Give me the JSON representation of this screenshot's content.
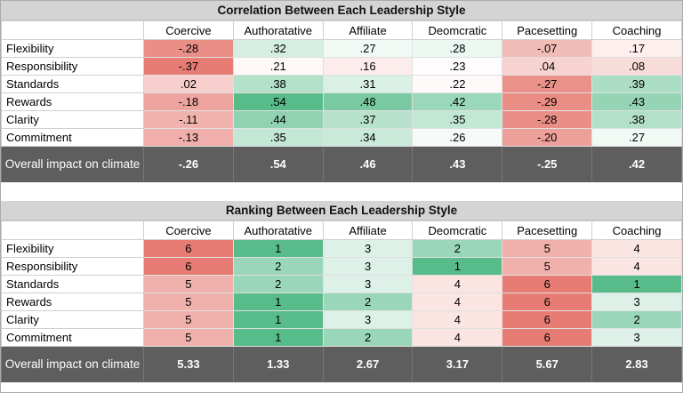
{
  "colors": {
    "title_bg": "#d4d4d4",
    "header_bg": "#ffffff",
    "overall_row_bg": "#5e5e5e",
    "overall_row_text": "#ffffff",
    "grid_border": "#d9d9d9",
    "scale_low": "#e67c73",
    "scale_mid": "#ffffff",
    "scale_high": "#57bb8a"
  },
  "tables": [
    {
      "name": "correlation",
      "title": "Correlation Between Each Leadership Style",
      "columns": [
        "Coercive",
        "Authoratative",
        "Affiliate",
        "Deomcratic",
        "Pacesetting",
        "Coaching"
      ],
      "rows": [
        {
          "label": "Flexibility",
          "values": [
            "-.28",
            ".32",
            ".27",
            ".28",
            "-.07",
            ".17"
          ],
          "bg": [
            "#ea8f87",
            "#d4eee1",
            "#f1f9f5",
            "#ebf7f1",
            "#f2bcb7",
            "#fcefee"
          ]
        },
        {
          "label": "Responsibility",
          "values": [
            "-.37",
            ".21",
            ".16",
            ".23",
            ".04",
            ".08"
          ],
          "bg": [
            "#e67c73",
            "#fef8f7",
            "#fcedec",
            "#fefcfc",
            "#f7d3d0",
            "#f8dcd9"
          ]
        },
        {
          "label": "Standards",
          "values": [
            ".02",
            ".38",
            ".31",
            ".22",
            "-.27",
            ".39"
          ],
          "bg": [
            "#f6cfcc",
            "#b2e0c9",
            "#daf0e5",
            "#fefaf9",
            "#ea918a",
            "#acdec5"
          ]
        },
        {
          "label": "Rewards",
          "values": [
            "-.18",
            ".54",
            ".48",
            ".42",
            "-.29",
            ".43"
          ],
          "bg": [
            "#eea49e",
            "#57bb8a",
            "#79c9a2",
            "#9bd7ba",
            "#e98d85",
            "#96d4b6"
          ]
        },
        {
          "label": "Clarity",
          "values": [
            "-.11",
            ".44",
            ".37",
            ".35",
            "-.28",
            ".38"
          ],
          "bg": [
            "#f1b3ae",
            "#90d2b2",
            "#b8e2cd",
            "#c3e7d5",
            "#ea8f87",
            "#b2e0c9"
          ]
        },
        {
          "label": "Commitment",
          "values": [
            "-.13",
            ".35",
            ".34",
            ".26",
            "-.20",
            ".27"
          ],
          "bg": [
            "#f0afaa",
            "#c3e7d5",
            "#c9e9d9",
            "#f6fbf9",
            "#eda09a",
            "#f1f9f5"
          ]
        }
      ],
      "overall": {
        "label": "Overall impact on climate",
        "values": [
          "-.26",
          ".54",
          ".46",
          ".43",
          "-.25",
          ".42"
        ]
      }
    },
    {
      "name": "ranking",
      "title": "Ranking Between Each Leadership Style",
      "columns": [
        "Coercive",
        "Authoratative",
        "Affiliate",
        "Deomcratic",
        "Pacesetting",
        "Coaching"
      ],
      "rows": [
        {
          "label": "Flexibility",
          "values": [
            "6",
            "1",
            "3",
            "2",
            "5",
            "4"
          ],
          "bg": [
            "#e67c73",
            "#57bb8a",
            "#ddf1e8",
            "#9ad6b9",
            "#f0b0ab",
            "#fae5e3"
          ]
        },
        {
          "label": "Responsibility",
          "values": [
            "6",
            "2",
            "3",
            "1",
            "5",
            "4"
          ],
          "bg": [
            "#e67c73",
            "#9ad6b9",
            "#ddf1e8",
            "#57bb8a",
            "#f0b0ab",
            "#fae5e3"
          ]
        },
        {
          "label": "Standards",
          "values": [
            "5",
            "2",
            "3",
            "4",
            "6",
            "1"
          ],
          "bg": [
            "#f0b0ab",
            "#9ad6b9",
            "#ddf1e8",
            "#fae5e3",
            "#e67c73",
            "#57bb8a"
          ]
        },
        {
          "label": "Rewards",
          "values": [
            "5",
            "1",
            "2",
            "4",
            "6",
            "3"
          ],
          "bg": [
            "#f0b0ab",
            "#57bb8a",
            "#9ad6b9",
            "#fae5e3",
            "#e67c73",
            "#ddf1e8"
          ]
        },
        {
          "label": "Clarity",
          "values": [
            "5",
            "1",
            "3",
            "4",
            "6",
            "2"
          ],
          "bg": [
            "#f0b0ab",
            "#57bb8a",
            "#ddf1e8",
            "#fae5e3",
            "#e67c73",
            "#9ad6b9"
          ]
        },
        {
          "label": "Commitment",
          "values": [
            "5",
            "1",
            "2",
            "4",
            "6",
            "3"
          ],
          "bg": [
            "#f0b0ab",
            "#57bb8a",
            "#9ad6b9",
            "#fae5e3",
            "#e67c73",
            "#ddf1e8"
          ]
        }
      ],
      "overall": {
        "label": "Overall impact on climate",
        "values": [
          "5.33",
          "1.33",
          "2.67",
          "3.17",
          "5.67",
          "2.83"
        ]
      }
    }
  ],
  "chart_data": [
    {
      "type": "heatmap",
      "title": "Correlation Between Each Leadership Style",
      "columns": [
        "Coercive",
        "Authoratative",
        "Affiliate",
        "Deomcratic",
        "Pacesetting",
        "Coaching"
      ],
      "rows": [
        "Flexibility",
        "Responsibility",
        "Standards",
        "Rewards",
        "Clarity",
        "Commitment"
      ],
      "values": [
        [
          -0.28,
          0.32,
          0.27,
          0.28,
          -0.07,
          0.17
        ],
        [
          -0.37,
          0.21,
          0.16,
          0.23,
          0.04,
          0.08
        ],
        [
          0.02,
          0.38,
          0.31,
          0.22,
          -0.27,
          0.39
        ],
        [
          -0.18,
          0.54,
          0.48,
          0.42,
          -0.29,
          0.43
        ],
        [
          -0.11,
          0.44,
          0.37,
          0.35,
          -0.28,
          0.38
        ],
        [
          -0.13,
          0.35,
          0.34,
          0.26,
          -0.2,
          0.27
        ]
      ],
      "summary_row": {
        "label": "Overall impact on climate",
        "values": [
          -0.26,
          0.54,
          0.46,
          0.43,
          -0.25,
          0.42
        ]
      },
      "color_scale": {
        "low": "#e67c73",
        "mid": "#ffffff",
        "high": "#57bb8a",
        "low_value": -0.37,
        "mid_value": 0.245,
        "high_value": 0.54
      }
    },
    {
      "type": "heatmap",
      "title": "Ranking Between Each Leadership Style",
      "columns": [
        "Coercive",
        "Authoratative",
        "Affiliate",
        "Deomcratic",
        "Pacesetting",
        "Coaching"
      ],
      "rows": [
        "Flexibility",
        "Responsibility",
        "Standards",
        "Rewards",
        "Clarity",
        "Commitment"
      ],
      "values": [
        [
          6,
          1,
          3,
          2,
          5,
          4
        ],
        [
          6,
          2,
          3,
          1,
          5,
          4
        ],
        [
          5,
          2,
          3,
          4,
          6,
          1
        ],
        [
          5,
          1,
          2,
          4,
          6,
          3
        ],
        [
          5,
          1,
          3,
          4,
          6,
          2
        ],
        [
          5,
          1,
          2,
          4,
          6,
          3
        ]
      ],
      "summary_row": {
        "label": "Overall impact on climate",
        "values": [
          5.33,
          1.33,
          2.67,
          3.17,
          5.67,
          2.83
        ]
      },
      "color_scale": {
        "low": "#e67c73",
        "mid": "#ffffff",
        "high": "#57bb8a",
        "low_value": 6,
        "mid_value": 3.5,
        "high_value": 1
      }
    }
  ]
}
